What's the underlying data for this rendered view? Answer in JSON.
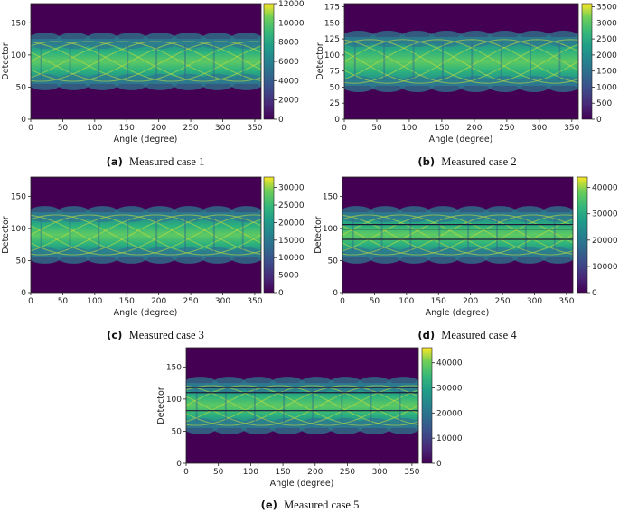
{
  "chart_data": [
    {
      "type": "heatmap",
      "panel": "a",
      "title": "Measured case 1",
      "xlabel": "Angle (degree)",
      "ylabel": "Detector",
      "xlim": [
        0,
        360
      ],
      "ylim": [
        0,
        180
      ],
      "xticks": [
        0,
        50,
        100,
        150,
        200,
        250,
        300,
        350
      ],
      "yticks": [
        0,
        50,
        100,
        150
      ],
      "colorbar": {
        "min": 0,
        "max": 12000,
        "ticks": [
          0,
          2000,
          4000,
          6000,
          8000,
          10000,
          12000
        ]
      },
      "band": {
        "center": 90,
        "halfwidth": 35
      },
      "lines": []
    },
    {
      "type": "heatmap",
      "panel": "b",
      "title": "Measured case 2",
      "xlabel": "Angle (degree)",
      "ylabel": "Detector",
      "xlim": [
        0,
        360
      ],
      "ylim": [
        0,
        180
      ],
      "xticks": [
        0,
        50,
        100,
        150,
        200,
        250,
        300,
        350
      ],
      "yticks": [
        0,
        25,
        50,
        75,
        100,
        125,
        150,
        175
      ],
      "colorbar": {
        "min": 0,
        "max": 3600,
        "ticks": [
          0,
          500,
          1000,
          1500,
          2000,
          2500,
          3000,
          3500
        ]
      },
      "band": {
        "center": 90,
        "halfwidth": 38
      },
      "lines": []
    },
    {
      "type": "heatmap",
      "panel": "c",
      "title": "Measured case 3",
      "xlabel": "Angle (degree)",
      "ylabel": "Detector",
      "xlim": [
        0,
        360
      ],
      "ylim": [
        0,
        180
      ],
      "xticks": [
        0,
        50,
        100,
        150,
        200,
        250,
        300,
        350
      ],
      "yticks": [
        0,
        50,
        100,
        150
      ],
      "colorbar": {
        "min": 0,
        "max": 33000,
        "ticks": [
          0,
          5000,
          10000,
          15000,
          20000,
          25000,
          30000
        ]
      },
      "band": {
        "center": 90,
        "halfwidth": 35
      },
      "lines": []
    },
    {
      "type": "heatmap",
      "panel": "d",
      "title": "Measured case 4",
      "xlabel": "Angle (degree)",
      "ylabel": "Detector",
      "xlim": [
        0,
        360
      ],
      "ylim": [
        0,
        180
      ],
      "xticks": [
        0,
        50,
        100,
        150,
        200,
        250,
        300,
        350
      ],
      "yticks": [
        0,
        50,
        100,
        150
      ],
      "colorbar": {
        "min": 0,
        "max": 44000,
        "ticks": [
          0,
          10000,
          20000,
          30000,
          40000
        ]
      },
      "band": {
        "center": 90,
        "halfwidth": 35
      },
      "lines": [
        83,
        99,
        106
      ]
    },
    {
      "type": "heatmap",
      "panel": "e",
      "title": "Measured case 5",
      "xlabel": "Angle (degree)",
      "ylabel": "Detector",
      "xlim": [
        0,
        360
      ],
      "ylim": [
        0,
        180
      ],
      "xticks": [
        0,
        50,
        100,
        150,
        200,
        250,
        300,
        350
      ],
      "yticks": [
        0,
        50,
        100,
        150
      ],
      "colorbar": {
        "min": 0,
        "max": 46000,
        "ticks": [
          0,
          10000,
          20000,
          30000,
          40000
        ]
      },
      "band": {
        "center": 90,
        "halfwidth": 35
      },
      "lines": [
        82,
        110,
        118
      ]
    }
  ],
  "captions": [
    {
      "label": "(a)",
      "text": "Measured case 1"
    },
    {
      "label": "(b)",
      "text": "Measured case 2"
    },
    {
      "label": "(c)",
      "text": "Measured case 3"
    },
    {
      "label": "(d)",
      "text": "Measured case 4"
    },
    {
      "label": "(e)",
      "text": "Measured case 5"
    }
  ],
  "colors": {
    "viridis_dark": "#440154",
    "viridis_mid": "#21918c",
    "viridis_bright": "#fde725"
  }
}
